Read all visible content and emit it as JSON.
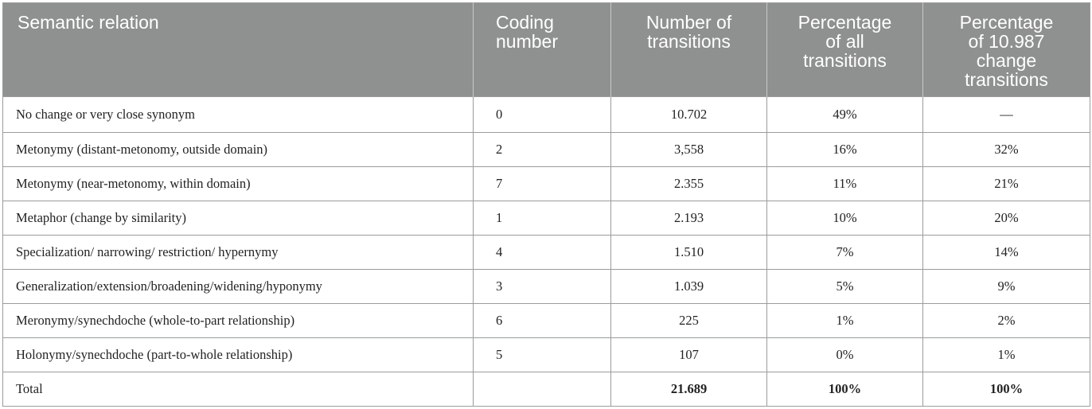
{
  "table": {
    "headers": [
      "Semantic relation",
      "Coding\nnumber",
      "Number of\ntransitions",
      "Percentage\nof all\ntransitions",
      "Percentage\nof 10.987\nchange\ntransitions"
    ],
    "rows": [
      [
        "No change or very close synonym",
        "0",
        "10.702",
        "49%",
        "—"
      ],
      [
        "Metonymy (distant-metonomy, outside domain)",
        "2",
        "3,558",
        "16%",
        "32%"
      ],
      [
        "Metonymy (near-metonomy, within domain)",
        "7",
        "2.355",
        "11%",
        "21%"
      ],
      [
        "Metaphor (change by similarity)",
        "1",
        "2.193",
        "10%",
        "20%"
      ],
      [
        "Specialization/ narrowing/ restriction/ hypernymy",
        "4",
        "1.510",
        "7%",
        "14%"
      ],
      [
        "Generalization/extension/broadening/widening/hyponymy",
        "3",
        "1.039",
        "5%",
        "9%"
      ],
      [
        "Meronymy/synechdoche (whole-to-part relationship)",
        "6",
        "225",
        "1%",
        "2%"
      ],
      [
        "Holonymy/synechdoche (part-to-whole relationship)",
        "5",
        "107",
        "0%",
        "1%"
      ]
    ],
    "total": [
      "Total",
      "",
      "21.689",
      "100%",
      "100%"
    ]
  }
}
